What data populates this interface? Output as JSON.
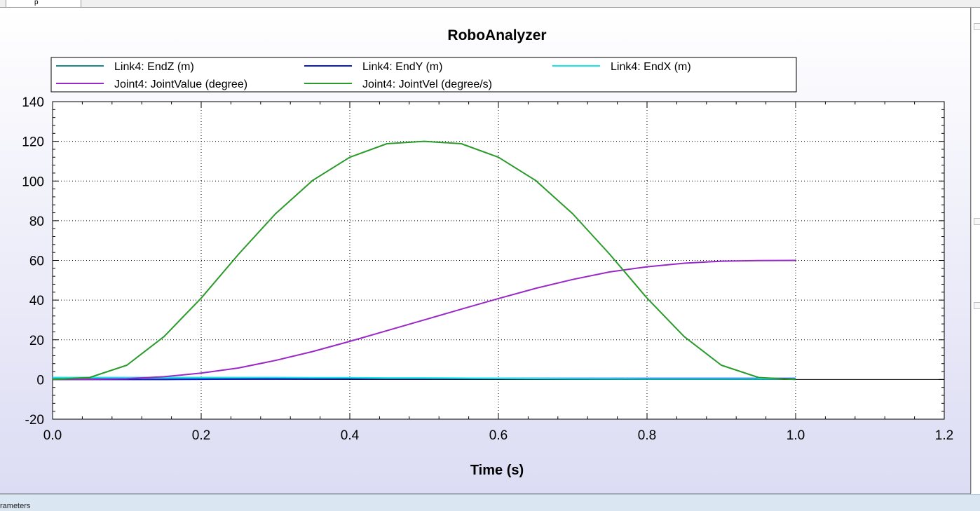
{
  "tab": {
    "label": "p"
  },
  "status": {
    "label": "rameters"
  },
  "chart_data": {
    "type": "line",
    "title": "RoboAnalyzer",
    "xlabel": "Time (s)",
    "ylabel": "",
    "xlim": [
      0.0,
      1.2
    ],
    "ylim": [
      -20,
      140
    ],
    "x_ticks": [
      0.0,
      0.2,
      0.4,
      0.6,
      0.8,
      1.0,
      1.2
    ],
    "x_tick_labels": [
      "0.0",
      "0.2",
      "0.4",
      "0.6",
      "0.8",
      "1.0",
      "1.2"
    ],
    "y_ticks": [
      -20,
      0,
      20,
      40,
      60,
      80,
      100,
      120,
      140
    ],
    "y_tick_labels": [
      "-20",
      "0",
      "20",
      "40",
      "60",
      "80",
      "100",
      "120",
      "140"
    ],
    "grid": true,
    "legend_position": "top",
    "x": [
      0.0,
      0.05,
      0.1,
      0.15,
      0.2,
      0.25,
      0.3,
      0.35,
      0.4,
      0.45,
      0.5,
      0.55,
      0.6,
      0.65,
      0.7,
      0.75,
      0.8,
      0.85,
      0.9,
      0.95,
      1.0
    ],
    "series": [
      {
        "name": "Link4: EndZ (m)",
        "color": "#1a8a8a",
        "values": [
          0.8,
          0.8,
          0.8,
          0.8,
          0.8,
          0.8,
          0.8,
          0.7,
          0.7,
          0.6,
          0.6,
          0.5,
          0.5,
          0.4,
          0.4,
          0.3,
          0.3,
          0.3,
          0.3,
          0.3,
          0.3
        ]
      },
      {
        "name": "Link4: EndY (m)",
        "color": "#0a1ec8",
        "values": [
          0.0,
          0.0,
          0.0,
          0.0,
          0.1,
          0.2,
          0.3,
          0.4,
          0.5,
          0.6,
          0.6,
          0.6,
          0.6,
          0.6,
          0.6,
          0.6,
          0.6,
          0.6,
          0.6,
          0.6,
          0.6
        ]
      },
      {
        "name": "Link4: EndX (m)",
        "color": "#14e6f0",
        "values": [
          1.0,
          1.0,
          1.0,
          1.0,
          1.0,
          1.0,
          1.0,
          0.9,
          0.9,
          0.8,
          0.8,
          0.7,
          0.6,
          0.5,
          0.4,
          0.4,
          0.3,
          0.3,
          0.3,
          0.3,
          0.3
        ]
      },
      {
        "name": "Joint4: JointValue (degree)",
        "color": "#9a28c8",
        "values": [
          0.0,
          0.1,
          0.4,
          1.4,
          3.2,
          5.8,
          9.6,
          14.1,
          19.2,
          24.6,
          30.0,
          35.4,
          40.8,
          45.9,
          50.4,
          54.2,
          56.8,
          58.6,
          59.6,
          59.9,
          60.0
        ]
      },
      {
        "name": "Joint4: JointVel (degree/s)",
        "color": "#2a9a2a",
        "values": [
          0.0,
          1.0,
          7.2,
          21.6,
          41.0,
          63.0,
          83.5,
          100.3,
          112.0,
          118.8,
          120.0,
          118.8,
          112.0,
          100.3,
          83.5,
          63.0,
          41.0,
          21.6,
          7.2,
          1.0,
          0.0
        ]
      }
    ]
  }
}
